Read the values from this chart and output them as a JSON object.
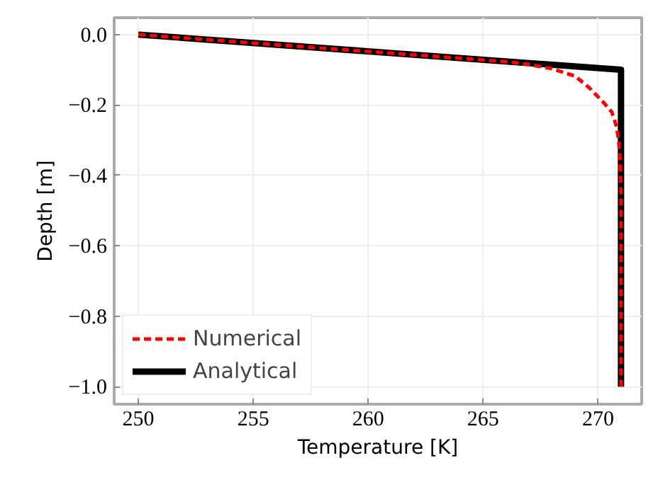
{
  "chart_data": {
    "type": "line",
    "xlabel": "Temperature [K]",
    "ylabel": "Depth [m]",
    "xlim": [
      248.95,
      271.9
    ],
    "ylim": [
      -1.05,
      0.048
    ],
    "xticks": [
      250,
      255,
      260,
      265,
      270
    ],
    "yticks": [
      {
        "value": 0,
        "label": "0.0"
      },
      {
        "value": -0.2,
        "label": "−0.2"
      },
      {
        "value": -0.4,
        "label": "−0.4"
      },
      {
        "value": -0.6,
        "label": "−0.6"
      },
      {
        "value": -0.8,
        "label": "−0.8"
      },
      {
        "value": -1.0,
        "label": "−1.0"
      }
    ],
    "grid": true,
    "legend": "bottom left",
    "series": [
      {
        "name": "Numerical",
        "color": "#ff0000",
        "line_style": "dashed",
        "x": [
          250,
          266,
          267,
          268,
          269,
          269.6,
          270.2,
          270.6,
          270.8,
          270.9,
          270.95,
          271,
          271
        ],
        "values": [
          0,
          -0.077,
          -0.085,
          -0.097,
          -0.118,
          -0.15,
          -0.19,
          -0.22,
          -0.26,
          -0.3,
          -0.35,
          -0.45,
          -1.0
        ]
      },
      {
        "name": "Analytical",
        "color": "#000000",
        "line_style": "solid",
        "x": [
          250,
          271,
          271
        ],
        "values": [
          0,
          -0.1,
          -1.0
        ]
      }
    ]
  }
}
